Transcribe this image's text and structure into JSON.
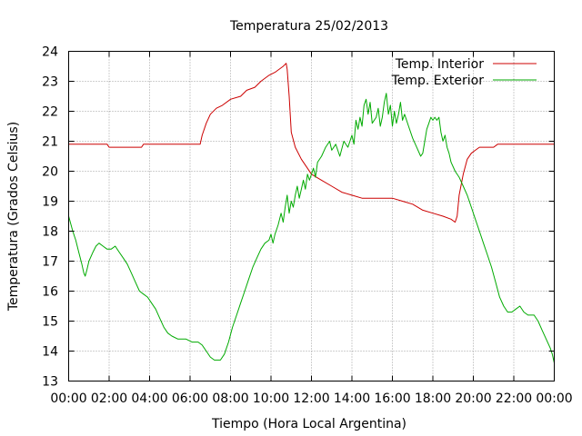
{
  "chart_data": {
    "type": "line",
    "title": "Temperatura 25/02/2013",
    "xlabel": "Tiempo (Hora Local Argentina)",
    "ylabel": "Temperatura (Grados Celsius)",
    "xlim": [
      0,
      24
    ],
    "ylim": [
      13,
      24
    ],
    "x_ticks": [
      {
        "v": 0,
        "label": "00:00"
      },
      {
        "v": 2,
        "label": "02:00"
      },
      {
        "v": 4,
        "label": "04:00"
      },
      {
        "v": 6,
        "label": "06:00"
      },
      {
        "v": 8,
        "label": "08:00"
      },
      {
        "v": 10,
        "label": "10:00"
      },
      {
        "v": 12,
        "label": "12:00"
      },
      {
        "v": 14,
        "label": "14:00"
      },
      {
        "v": 16,
        "label": "16:00"
      },
      {
        "v": 18,
        "label": "18:00"
      },
      {
        "v": 20,
        "label": "20:00"
      },
      {
        "v": 22,
        "label": "22:00"
      },
      {
        "v": 24,
        "label": "00:00"
      }
    ],
    "y_ticks": [
      {
        "v": 13,
        "label": "13"
      },
      {
        "v": 14,
        "label": "14"
      },
      {
        "v": 15,
        "label": "15"
      },
      {
        "v": 16,
        "label": "16"
      },
      {
        "v": 17,
        "label": "17"
      },
      {
        "v": 18,
        "label": "18"
      },
      {
        "v": 19,
        "label": "19"
      },
      {
        "v": 20,
        "label": "20"
      },
      {
        "v": 21,
        "label": "21"
      },
      {
        "v": 22,
        "label": "22"
      },
      {
        "v": 23,
        "label": "23"
      },
      {
        "v": 24,
        "label": "24"
      }
    ],
    "grid": true,
    "legend_position": "top-right",
    "series": [
      {
        "name": "Temp. Interior",
        "color": "#cc0000",
        "points": [
          [
            0,
            20.9
          ],
          [
            1.9,
            20.9
          ],
          [
            2.0,
            20.8
          ],
          [
            3.6,
            20.8
          ],
          [
            3.7,
            20.9
          ],
          [
            6.5,
            20.9
          ],
          [
            6.6,
            21.2
          ],
          [
            6.8,
            21.6
          ],
          [
            7.0,
            21.9
          ],
          [
            7.3,
            22.1
          ],
          [
            7.6,
            22.2
          ],
          [
            8.0,
            22.4
          ],
          [
            8.5,
            22.5
          ],
          [
            8.8,
            22.7
          ],
          [
            9.2,
            22.8
          ],
          [
            9.5,
            23.0
          ],
          [
            9.9,
            23.2
          ],
          [
            10.2,
            23.3
          ],
          [
            10.6,
            23.5
          ],
          [
            10.75,
            23.6
          ],
          [
            10.8,
            23.4
          ],
          [
            10.9,
            22.5
          ],
          [
            11.0,
            21.3
          ],
          [
            11.2,
            20.8
          ],
          [
            11.5,
            20.4
          ],
          [
            11.8,
            20.1
          ],
          [
            12.0,
            19.9
          ],
          [
            12.5,
            19.7
          ],
          [
            13.0,
            19.5
          ],
          [
            13.5,
            19.3
          ],
          [
            14.0,
            19.2
          ],
          [
            14.5,
            19.1
          ],
          [
            15.0,
            19.1
          ],
          [
            16.0,
            19.1
          ],
          [
            16.5,
            19.0
          ],
          [
            17.0,
            18.9
          ],
          [
            17.5,
            18.7
          ],
          [
            18.0,
            18.6
          ],
          [
            18.5,
            18.5
          ],
          [
            18.9,
            18.4
          ],
          [
            19.1,
            18.3
          ],
          [
            19.2,
            18.5
          ],
          [
            19.3,
            19.2
          ],
          [
            19.5,
            19.9
          ],
          [
            19.7,
            20.4
          ],
          [
            19.9,
            20.6
          ],
          [
            20.1,
            20.7
          ],
          [
            20.3,
            20.8
          ],
          [
            21.0,
            20.8
          ],
          [
            21.2,
            20.9
          ],
          [
            24,
            20.9
          ]
        ]
      },
      {
        "name": "Temp. Exterior",
        "color": "#00aa00",
        "points": [
          [
            0,
            18.5
          ],
          [
            0.2,
            18.0
          ],
          [
            0.35,
            17.7
          ],
          [
            0.5,
            17.3
          ],
          [
            0.65,
            16.9
          ],
          [
            0.75,
            16.6
          ],
          [
            0.82,
            16.5
          ],
          [
            0.9,
            16.7
          ],
          [
            1.0,
            17.0
          ],
          [
            1.2,
            17.3
          ],
          [
            1.35,
            17.5
          ],
          [
            1.5,
            17.6
          ],
          [
            1.7,
            17.5
          ],
          [
            1.9,
            17.4
          ],
          [
            2.1,
            17.4
          ],
          [
            2.3,
            17.5
          ],
          [
            2.5,
            17.3
          ],
          [
            2.7,
            17.1
          ],
          [
            2.9,
            16.9
          ],
          [
            3.1,
            16.6
          ],
          [
            3.3,
            16.3
          ],
          [
            3.5,
            16.0
          ],
          [
            3.7,
            15.9
          ],
          [
            3.9,
            15.8
          ],
          [
            4.1,
            15.6
          ],
          [
            4.3,
            15.4
          ],
          [
            4.5,
            15.1
          ],
          [
            4.7,
            14.8
          ],
          [
            4.9,
            14.6
          ],
          [
            5.1,
            14.5
          ],
          [
            5.4,
            14.4
          ],
          [
            5.8,
            14.4
          ],
          [
            6.1,
            14.3
          ],
          [
            6.4,
            14.3
          ],
          [
            6.6,
            14.2
          ],
          [
            6.8,
            14.0
          ],
          [
            7.0,
            13.8
          ],
          [
            7.2,
            13.7
          ],
          [
            7.5,
            13.7
          ],
          [
            7.7,
            13.9
          ],
          [
            7.9,
            14.3
          ],
          [
            8.1,
            14.8
          ],
          [
            8.3,
            15.2
          ],
          [
            8.5,
            15.6
          ],
          [
            8.7,
            16.0
          ],
          [
            8.9,
            16.4
          ],
          [
            9.1,
            16.8
          ],
          [
            9.3,
            17.1
          ],
          [
            9.5,
            17.4
          ],
          [
            9.7,
            17.6
          ],
          [
            9.9,
            17.7
          ],
          [
            10.0,
            17.9
          ],
          [
            10.1,
            17.6
          ],
          [
            10.2,
            17.9
          ],
          [
            10.35,
            18.2
          ],
          [
            10.5,
            18.6
          ],
          [
            10.6,
            18.3
          ],
          [
            10.7,
            18.8
          ],
          [
            10.8,
            19.2
          ],
          [
            10.9,
            18.6
          ],
          [
            11.0,
            19.0
          ],
          [
            11.1,
            18.8
          ],
          [
            11.2,
            19.2
          ],
          [
            11.3,
            19.5
          ],
          [
            11.4,
            19.1
          ],
          [
            11.5,
            19.4
          ],
          [
            11.6,
            19.7
          ],
          [
            11.7,
            19.4
          ],
          [
            11.8,
            19.9
          ],
          [
            11.9,
            19.7
          ],
          [
            12.0,
            19.9
          ],
          [
            12.1,
            20.1
          ],
          [
            12.2,
            19.8
          ],
          [
            12.3,
            20.3
          ],
          [
            12.5,
            20.5
          ],
          [
            12.7,
            20.8
          ],
          [
            12.9,
            21.0
          ],
          [
            13.0,
            20.7
          ],
          [
            13.2,
            20.9
          ],
          [
            13.4,
            20.5
          ],
          [
            13.6,
            21.0
          ],
          [
            13.8,
            20.8
          ],
          [
            14.0,
            21.2
          ],
          [
            14.1,
            20.9
          ],
          [
            14.2,
            21.7
          ],
          [
            14.3,
            21.4
          ],
          [
            14.4,
            21.8
          ],
          [
            14.5,
            21.5
          ],
          [
            14.6,
            22.2
          ],
          [
            14.7,
            22.4
          ],
          [
            14.8,
            21.9
          ],
          [
            14.9,
            22.3
          ],
          [
            15.0,
            21.6
          ],
          [
            15.2,
            21.8
          ],
          [
            15.3,
            22.1
          ],
          [
            15.4,
            21.5
          ],
          [
            15.5,
            21.8
          ],
          [
            15.6,
            22.3
          ],
          [
            15.7,
            22.6
          ],
          [
            15.8,
            21.9
          ],
          [
            15.9,
            22.2
          ],
          [
            16.0,
            21.5
          ],
          [
            16.1,
            22.0
          ],
          [
            16.2,
            21.6
          ],
          [
            16.3,
            21.9
          ],
          [
            16.4,
            22.3
          ],
          [
            16.5,
            21.7
          ],
          [
            16.6,
            21.9
          ],
          [
            16.8,
            21.5
          ],
          [
            17.0,
            21.1
          ],
          [
            17.2,
            20.8
          ],
          [
            17.4,
            20.5
          ],
          [
            17.5,
            20.6
          ],
          [
            17.6,
            21.0
          ],
          [
            17.7,
            21.4
          ],
          [
            17.8,
            21.6
          ],
          [
            17.9,
            21.8
          ],
          [
            18.0,
            21.7
          ],
          [
            18.1,
            21.8
          ],
          [
            18.2,
            21.7
          ],
          [
            18.3,
            21.8
          ],
          [
            18.4,
            21.3
          ],
          [
            18.5,
            21.0
          ],
          [
            18.6,
            21.2
          ],
          [
            18.7,
            20.8
          ],
          [
            18.8,
            20.6
          ],
          [
            18.9,
            20.3
          ],
          [
            19.1,
            20.0
          ],
          [
            19.3,
            19.8
          ],
          [
            19.5,
            19.5
          ],
          [
            19.7,
            19.2
          ],
          [
            19.9,
            18.8
          ],
          [
            20.1,
            18.4
          ],
          [
            20.3,
            18.0
          ],
          [
            20.5,
            17.6
          ],
          [
            20.7,
            17.2
          ],
          [
            20.9,
            16.8
          ],
          [
            21.1,
            16.3
          ],
          [
            21.3,
            15.8
          ],
          [
            21.5,
            15.5
          ],
          [
            21.7,
            15.3
          ],
          [
            21.9,
            15.3
          ],
          [
            22.1,
            15.4
          ],
          [
            22.3,
            15.5
          ],
          [
            22.5,
            15.3
          ],
          [
            22.7,
            15.2
          ],
          [
            23.0,
            15.2
          ],
          [
            23.2,
            15.0
          ],
          [
            23.4,
            14.7
          ],
          [
            23.6,
            14.4
          ],
          [
            23.8,
            14.1
          ],
          [
            23.9,
            13.9
          ],
          [
            24.0,
            13.6
          ]
        ]
      }
    ]
  }
}
